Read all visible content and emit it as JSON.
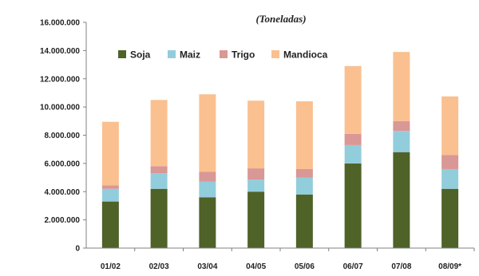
{
  "chart_data": {
    "type": "bar",
    "stacked": true,
    "subtitle": "(Toneladas)",
    "categories": [
      "01/02",
      "02/03",
      "03/04",
      "04/05",
      "05/06",
      "06/07",
      "07/08",
      "08/09*"
    ],
    "ylim": [
      0,
      16000000
    ],
    "yticks": [
      0,
      2000000,
      4000000,
      6000000,
      8000000,
      10000000,
      12000000,
      14000000,
      16000000
    ],
    "ytick_labels": [
      "0",
      "2.000.000",
      "4.000.000",
      "6.000.000",
      "8.000.000",
      "10.000.000",
      "12.000.000",
      "14.000.000",
      "16.000.000"
    ],
    "legend_position": "top",
    "grid": false,
    "series": [
      {
        "name": "Soja",
        "color": "#4f6228",
        "values": [
          3300000,
          4200000,
          3600000,
          4000000,
          3800000,
          6000000,
          6800000,
          4200000
        ]
      },
      {
        "name": "Maiz",
        "color": "#92cddc",
        "values": [
          900000,
          1100000,
          1100000,
          850000,
          1200000,
          1300000,
          1500000,
          1400000
        ]
      },
      {
        "name": "Trigo",
        "color": "#d99795",
        "values": [
          250000,
          500000,
          700000,
          800000,
          600000,
          800000,
          700000,
          1000000
        ]
      },
      {
        "name": "Mandioca",
        "color": "#fac090",
        "values": [
          4500000,
          4700000,
          5500000,
          4800000,
          4800000,
          4800000,
          4900000,
          4150000
        ]
      }
    ]
  }
}
